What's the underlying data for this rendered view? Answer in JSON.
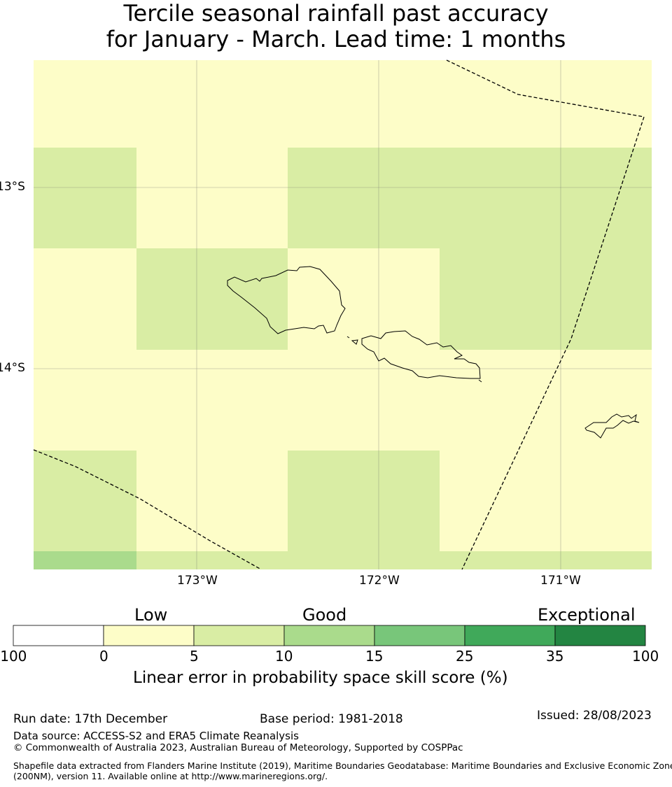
{
  "title": {
    "line1": "Tercile seasonal rainfall past accuracy",
    "line2": "for January - March. Lead time: 1 months"
  },
  "map": {
    "latitude_labels": [
      "13°S",
      "14°S"
    ],
    "longitude_labels": [
      "173°W",
      "172°W",
      "171°W"
    ],
    "grid_cells": [
      {
        "row": 0,
        "col": 0,
        "category": "0-5"
      },
      {
        "row": 0,
        "col": 1,
        "category": "0-5"
      },
      {
        "row": 0,
        "col": 2,
        "category": "0-5"
      },
      {
        "row": 0,
        "col": 3,
        "category": "0-5"
      },
      {
        "row": 1,
        "col": 0,
        "category": "5-10"
      },
      {
        "row": 1,
        "col": 1,
        "category": "0-5"
      },
      {
        "row": 1,
        "col": 2,
        "category": "5-10"
      },
      {
        "row": 1,
        "col": 3,
        "category": "5-10"
      },
      {
        "row": 2,
        "col": 0,
        "category": "0-5"
      },
      {
        "row": 2,
        "col": 1,
        "category": "5-10"
      },
      {
        "row": 2,
        "col": 2,
        "category": "0-5"
      },
      {
        "row": 2,
        "col": 3,
        "category": "5-10"
      },
      {
        "row": 3,
        "col": 0,
        "category": "0-5"
      },
      {
        "row": 3,
        "col": 1,
        "category": "0-5"
      },
      {
        "row": 3,
        "col": 2,
        "category": "0-5"
      },
      {
        "row": 3,
        "col": 3,
        "category": "0-5"
      },
      {
        "row": 4,
        "col": 0,
        "category": "5-10"
      },
      {
        "row": 4,
        "col": 1,
        "category": "0-5"
      },
      {
        "row": 4,
        "col": 2,
        "category": "5-10"
      },
      {
        "row": 4,
        "col": 3,
        "category": "0-5"
      },
      {
        "row": 5,
        "col": 0,
        "category": "10-15"
      },
      {
        "row": 5,
        "col": 1,
        "category": "5-10"
      },
      {
        "row": 5,
        "col": 2,
        "category": "5-10"
      },
      {
        "row": 5,
        "col": 3,
        "category": "5-10"
      }
    ]
  },
  "colorbar": {
    "categories": [
      "Low",
      "Good",
      "Exceptional"
    ],
    "ticks": [
      "-100",
      "0",
      "5",
      "10",
      "15",
      "25",
      "35",
      "100"
    ],
    "colors": [
      "#ffffff",
      "#fdfdc8",
      "#d9eda4",
      "#aadb8c",
      "#78c67a",
      "#40a95a",
      "#238542"
    ],
    "label": "Linear error in probability space skill score (%)"
  },
  "footer": {
    "run_date": "Run date: 17th December",
    "base_period": "Base period: 1981-2018",
    "issued": "Issued: 28/08/2023",
    "data_source": "Data source: ACCESS-S2 and ERA5 Climate Reanalysis",
    "copyright": "© Commonwealth of Australia 2023, Australian Bureau of Meteorology, Supported by COSPPac",
    "shapefile_line1": "Shapefile data extracted from Flanders Marine Institute (2019), Maritime Boundaries Geodatabase: Maritime Boundaries and Exclusive Economic Zones",
    "shapefile_line2": "(200NM), version 11. Available online at http://www.marineregions.org/."
  }
}
